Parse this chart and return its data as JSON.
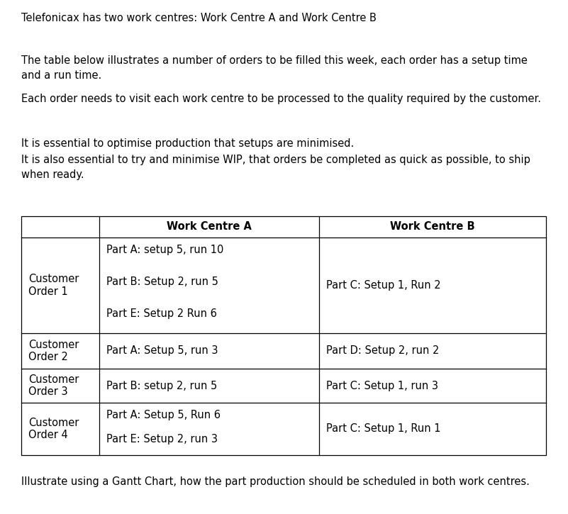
{
  "title_text": "Telefonicax has two work centres: Work Centre A and Work Centre B",
  "para1": "The table below illustrates a number of orders to be filled this week, each order has a setup time\nand a run time.",
  "para2": "Each order needs to visit each work centre to be processed to the quality required by the customer.",
  "para3": "It is essential to optimise production that setups are minimised.",
  "para4": "It is also essential to try and minimise WIP, that orders be completed as quick as possible, to ship\nwhen ready.",
  "footer": "Illustrate using a Gantt Chart, how the part production should be scheduled in both work centres.",
  "col_headers": [
    "",
    "Work Centre A",
    "Work Centre B"
  ],
  "rows": [
    {
      "label": "Customer\nOrder 1",
      "col_a_lines": [
        "Part A: setup 5, run 10",
        "",
        "Part B: Setup 2, run 5",
        "",
        "Part E: Setup 2 Run 6"
      ],
      "col_b": "Part C: Setup 1, Run 2"
    },
    {
      "label": "Customer\nOrder 2",
      "col_a_lines": [
        "Part A: Setup 5, run 3"
      ],
      "col_b": "Part D: Setup 2, run 2"
    },
    {
      "label": "Customer\nOrder 3",
      "col_a_lines": [
        "Part B: setup 2, run 5"
      ],
      "col_b": "Part C: Setup 1, run 3"
    },
    {
      "label": "Customer\nOrder 4",
      "col_a_lines": [
        "Part A: Setup 5, Run 6",
        "",
        "Part E: Setup 2, run 3"
      ],
      "col_b": "Part C: Setup 1, Run 1"
    }
  ],
  "bg_color": "#ffffff",
  "text_color": "#000000",
  "font_size": 10.5,
  "fig_width": 8.01,
  "fig_height": 7.25,
  "dpi": 100
}
